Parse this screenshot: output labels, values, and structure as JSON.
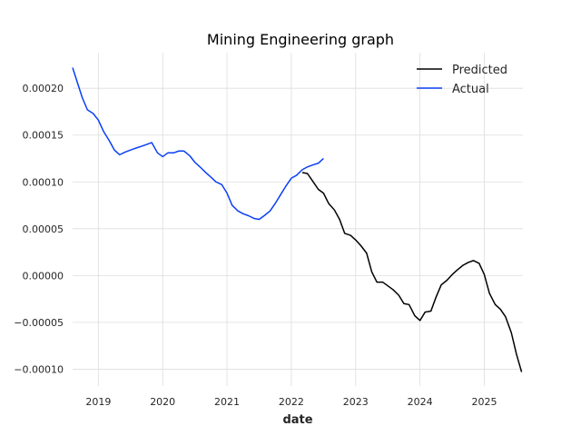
{
  "chart_data": {
    "type": "line",
    "title": "Mining Engineering graph",
    "xlabel": "date",
    "ylabel": "",
    "x_ticks": [
      "2019",
      "2020",
      "2021",
      "2022",
      "2023",
      "2024",
      "2025"
    ],
    "y_ticks": [
      "0.00020",
      "0.00015",
      "0.00010",
      "0.00005",
      "0.00000",
      "−0.00005",
      "−0.00010"
    ],
    "xlim": [
      2018.6,
      2025.6
    ],
    "ylim": [
      -0.000118,
      0.000238
    ],
    "grid": true,
    "legend_position": "top-right",
    "series": [
      {
        "name": "Predicted",
        "color": "#000000",
        "x": [
          2022.17,
          2022.25,
          2022.33,
          2022.42,
          2022.5,
          2022.58,
          2022.67,
          2022.75,
          2022.83,
          2022.92,
          2023.0,
          2023.08,
          2023.17,
          2023.25,
          2023.33,
          2023.42,
          2023.5,
          2023.58,
          2023.67,
          2023.75,
          2023.83,
          2023.92,
          2024.0,
          2024.08,
          2024.17,
          2024.25,
          2024.33,
          2024.42,
          2024.5,
          2024.58,
          2024.67,
          2024.75,
          2024.83,
          2024.92,
          2025.0,
          2025.08,
          2025.17,
          2025.25,
          2025.33,
          2025.42,
          2025.5,
          2025.58
        ],
        "y": [
          0.00011,
          0.000109,
          0.000101,
          9.2e-05,
          8.8e-05,
          7.7e-05,
          7e-05,
          6e-05,
          4.5e-05,
          4.3e-05,
          3.8e-05,
          3.2e-05,
          2.4e-05,
          4e-06,
          -7e-06,
          -7e-06,
          -1.1e-05,
          -1.5e-05,
          -2.1e-05,
          -3e-05,
          -3.1e-05,
          -4.3e-05,
          -4.8e-05,
          -3.9e-05,
          -3.8e-05,
          -2.3e-05,
          -1e-05,
          -5e-06,
          1e-06,
          6e-06,
          1.1e-05,
          1.4e-05,
          1.6e-05,
          1.3e-05,
          1e-06,
          -1.9e-05,
          -3.1e-05,
          -3.6e-05,
          -4.4e-05,
          -6.1e-05,
          -8.4e-05,
          -0.000103
        ]
      },
      {
        "name": "Actual",
        "color": "#0a3ff5",
        "x": [
          2018.6,
          2018.67,
          2018.75,
          2018.83,
          2018.92,
          2019.0,
          2019.08,
          2019.17,
          2019.25,
          2019.33,
          2019.42,
          2019.5,
          2019.58,
          2019.67,
          2019.75,
          2019.83,
          2019.92,
          2020.0,
          2020.08,
          2020.17,
          2020.25,
          2020.33,
          2020.42,
          2020.5,
          2020.58,
          2020.67,
          2020.75,
          2020.83,
          2020.92,
          2021.0,
          2021.08,
          2021.17,
          2021.25,
          2021.33,
          2021.42,
          2021.5,
          2021.58,
          2021.67,
          2021.75,
          2021.83,
          2021.92,
          2022.0,
          2022.08,
          2022.17,
          2022.25,
          2022.33,
          2022.42,
          2022.5
        ],
        "y": [
          0.000222,
          0.000207,
          0.00019,
          0.000177,
          0.000173,
          0.000166,
          0.000154,
          0.000144,
          0.000134,
          0.000129,
          0.000132,
          0.000134,
          0.000136,
          0.000138,
          0.00014,
          0.000142,
          0.000131,
          0.000127,
          0.000131,
          0.000131,
          0.000133,
          0.000133,
          0.000128,
          0.000121,
          0.000116,
          0.00011,
          0.000105,
          0.0001,
          9.7e-05,
          8.8e-05,
          7.5e-05,
          6.9e-05,
          6.6e-05,
          6.4e-05,
          6.1e-05,
          6e-05,
          6.4e-05,
          6.9e-05,
          7.7e-05,
          8.6e-05,
          9.6e-05,
          0.000104,
          0.000107,
          0.000113,
          0.000116,
          0.000118,
          0.00012,
          0.000125
        ]
      }
    ]
  }
}
